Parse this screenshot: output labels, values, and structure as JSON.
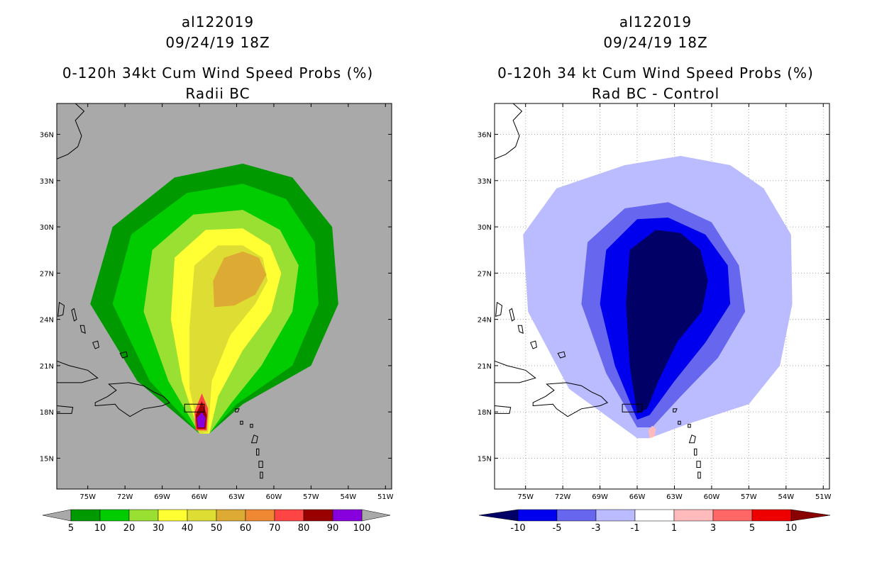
{
  "chart_data": [
    {
      "type": "heatmap",
      "storm_id": "al122019",
      "datetime": "09/24/19 18Z",
      "title": "0-120h 34kt Cum Wind Speed Probs (%)",
      "subtitle": "Radii BC",
      "x_ticks": [
        "75W",
        "72W",
        "69W",
        "66W",
        "63W",
        "60W",
        "57W",
        "54W",
        "51W"
      ],
      "y_ticks": [
        "15N",
        "18N",
        "21N",
        "24N",
        "27N",
        "30N",
        "33N",
        "36N"
      ],
      "xlim": [
        -77.5,
        -50.5
      ],
      "ylim": [
        13.0,
        38.0
      ],
      "grid": false,
      "background_color": "#a9a9a9",
      "colorbar": {
        "labels": [
          "5",
          "10",
          "20",
          "30",
          "40",
          "50",
          "60",
          "70",
          "80",
          "90",
          "100"
        ],
        "colors": [
          "#009900",
          "#00cc00",
          "#99e033",
          "#ffff33",
          "#dddd33",
          "#ddaa33",
          "#ee8833",
          "#ff4444",
          "#990000",
          "#8800dd"
        ],
        "under_color": "#a9a9a9",
        "over_color": "#a9a9a9"
      },
      "contours": [
        {
          "level": 5,
          "color": "#009900",
          "ring": [
            [
              -66.0,
              16.6
            ],
            [
              -71.0,
              20.0
            ],
            [
              -74.8,
              25.0
            ],
            [
              -73.0,
              30.0
            ],
            [
              -68.0,
              33.2
            ],
            [
              -62.5,
              34.1
            ],
            [
              -58.5,
              33.2
            ],
            [
              -55.3,
              30.0
            ],
            [
              -54.8,
              25.0
            ],
            [
              -57.0,
              21.0
            ],
            [
              -62.5,
              18.5
            ],
            [
              -65.2,
              16.6
            ]
          ]
        },
        {
          "level": 10,
          "color": "#00cc00",
          "ring": [
            [
              -66.0,
              16.6
            ],
            [
              -70.0,
              20.0
            ],
            [
              -73.0,
              25.0
            ],
            [
              -71.5,
              29.5
            ],
            [
              -67.0,
              32.2
            ],
            [
              -62.5,
              32.8
            ],
            [
              -59.0,
              31.8
            ],
            [
              -56.7,
              29.0
            ],
            [
              -56.4,
              25.0
            ],
            [
              -58.5,
              21.0
            ],
            [
              -63.0,
              18.5
            ],
            [
              -65.2,
              16.6
            ]
          ]
        },
        {
          "level": 20,
          "color": "#99e033",
          "ring": [
            [
              -66.0,
              16.6
            ],
            [
              -68.5,
              20.0
            ],
            [
              -70.5,
              24.5
            ],
            [
              -69.8,
              28.5
            ],
            [
              -66.5,
              30.8
            ],
            [
              -62.5,
              31.1
            ],
            [
              -59.5,
              29.8
            ],
            [
              -58.0,
              27.5
            ],
            [
              -58.5,
              24.5
            ],
            [
              -61.0,
              21.0
            ],
            [
              -63.5,
              18.5
            ],
            [
              -65.2,
              16.6
            ]
          ]
        },
        {
          "level": 30,
          "color": "#ffff33",
          "ring": [
            [
              -66.0,
              16.6
            ],
            [
              -67.4,
              20.0
            ],
            [
              -68.3,
              24.0
            ],
            [
              -68.0,
              28.0
            ],
            [
              -65.5,
              29.8
            ],
            [
              -62.5,
              29.9
            ],
            [
              -60.3,
              28.8
            ],
            [
              -59.4,
              27.0
            ],
            [
              -60.2,
              24.5
            ],
            [
              -62.5,
              22.0
            ],
            [
              -64.5,
              19.0
            ],
            [
              -65.2,
              16.6
            ]
          ]
        },
        {
          "level": 40,
          "color": "#dddd33",
          "ring": [
            [
              -66.0,
              16.6
            ],
            [
              -66.8,
              19.5
            ],
            [
              -66.8,
              23.5
            ],
            [
              -66.4,
              27.5
            ],
            [
              -64.5,
              28.8
            ],
            [
              -62.5,
              28.8
            ],
            [
              -60.9,
              28.0
            ],
            [
              -60.5,
              26.5
            ],
            [
              -61.5,
              25.0
            ],
            [
              -63.5,
              23.0
            ],
            [
              -65.0,
              20.0
            ],
            [
              -65.3,
              16.7
            ]
          ]
        },
        {
          "level": 50,
          "color": "#ddaa33",
          "ring": [
            [
              -64.8,
              24.8
            ],
            [
              -64.9,
              26.5
            ],
            [
              -64.0,
              28.0
            ],
            [
              -62.5,
              28.4
            ],
            [
              -61.2,
              28.0
            ],
            [
              -60.6,
              26.9
            ],
            [
              -61.5,
              25.6
            ],
            [
              -63.2,
              24.9
            ]
          ]
        },
        {
          "level": 70,
          "color": "#ff4444",
          "ring": [
            [
              -66.3,
              16.8
            ],
            [
              -66.4,
              18.0
            ],
            [
              -65.8,
              19.2
            ],
            [
              -65.3,
              18.2
            ],
            [
              -65.4,
              16.8
            ]
          ]
        },
        {
          "level": 80,
          "color": "#990000",
          "ring": [
            [
              -66.2,
              16.9
            ],
            [
              -66.3,
              17.8
            ],
            [
              -65.8,
              18.7
            ],
            [
              -65.4,
              17.8
            ],
            [
              -65.5,
              16.9
            ]
          ]
        },
        {
          "level": 90,
          "color": "#8800dd",
          "ring": [
            [
              -66.1,
              17.0
            ],
            [
              -66.2,
              17.6
            ],
            [
              -65.8,
              18.0
            ],
            [
              -65.5,
              17.6
            ],
            [
              -65.6,
              17.0
            ]
          ]
        }
      ]
    },
    {
      "type": "heatmap",
      "storm_id": "al122019",
      "datetime": "09/24/19 18Z",
      "title": "0-120h 34 kt Cum Wind Speed Probs (%)",
      "subtitle": "Rad BC - Control",
      "x_ticks": [
        "75W",
        "72W",
        "69W",
        "66W",
        "63W",
        "60W",
        "57W",
        "54W",
        "51W"
      ],
      "y_ticks": [
        "15N",
        "18N",
        "21N",
        "24N",
        "27N",
        "30N",
        "33N",
        "36N"
      ],
      "xlim": [
        -77.5,
        -50.5
      ],
      "ylim": [
        13.0,
        38.0
      ],
      "grid": true,
      "background_color": "#ffffff",
      "colorbar": {
        "labels": [
          "-10",
          "-5",
          "-3",
          "-1",
          "1",
          "3",
          "5",
          "10"
        ],
        "colors": [
          "#0000ee",
          "#6666ee",
          "#bbbbff",
          "#ffffff",
          "#ffbbbb",
          "#ff6666",
          "#ee0000"
        ],
        "under_color": "#000066",
        "over_color": "#880000"
      },
      "contours": [
        {
          "level": -1,
          "color": "#bbbbff",
          "ring": [
            [
              -66.0,
              16.3
            ],
            [
              -71.5,
              19.5
            ],
            [
              -74.8,
              24.5
            ],
            [
              -75.2,
              29.5
            ],
            [
              -72.5,
              32.5
            ],
            [
              -67.0,
              34.0
            ],
            [
              -62.5,
              34.6
            ],
            [
              -58.5,
              34.0
            ],
            [
              -55.8,
              32.5
            ],
            [
              -53.6,
              29.5
            ],
            [
              -53.5,
              25.0
            ],
            [
              -54.5,
              21.0
            ],
            [
              -57.0,
              18.5
            ],
            [
              -62.0,
              17.2
            ],
            [
              -65.0,
              16.3
            ]
          ]
        },
        {
          "level": -3,
          "color": "#6666ee",
          "ring": [
            [
              -66.0,
              17.0
            ],
            [
              -68.5,
              20.5
            ],
            [
              -70.5,
              25.0
            ],
            [
              -70.0,
              29.0
            ],
            [
              -67.0,
              31.2
            ],
            [
              -63.5,
              31.6
            ],
            [
              -60.0,
              30.3
            ],
            [
              -57.8,
              27.5
            ],
            [
              -57.3,
              24.5
            ],
            [
              -59.5,
              21.5
            ],
            [
              -62.5,
              19.0
            ],
            [
              -64.8,
              17.0
            ]
          ]
        },
        {
          "level": -5,
          "color": "#0000ee",
          "ring": [
            [
              -66.0,
              17.5
            ],
            [
              -67.8,
              21.0
            ],
            [
              -69.0,
              25.0
            ],
            [
              -68.5,
              28.5
            ],
            [
              -66.0,
              30.5
            ],
            [
              -63.5,
              30.6
            ],
            [
              -60.5,
              29.5
            ],
            [
              -58.7,
              27.5
            ],
            [
              -58.5,
              25.0
            ],
            [
              -60.5,
              22.5
            ],
            [
              -63.0,
              20.0
            ],
            [
              -65.0,
              17.8
            ]
          ]
        },
        {
          "level": -10,
          "color": "#000066",
          "ring": [
            [
              -66.0,
              17.9
            ],
            [
              -66.6,
              21.0
            ],
            [
              -66.9,
              25.0
            ],
            [
              -66.6,
              28.5
            ],
            [
              -64.5,
              29.8
            ],
            [
              -62.5,
              29.6
            ],
            [
              -60.9,
              28.5
            ],
            [
              -60.3,
              26.5
            ],
            [
              -60.8,
              24.5
            ],
            [
              -62.8,
              22.5
            ],
            [
              -64.3,
              20.0
            ],
            [
              -65.2,
              18.2
            ]
          ]
        },
        {
          "level": 1,
          "color": "#ffbbbb",
          "ring": [
            [
              -65.0,
              16.3
            ],
            [
              -64.6,
              16.4
            ],
            [
              -64.5,
              16.9
            ],
            [
              -64.8,
              17.1
            ],
            [
              -65.1,
              16.8
            ]
          ]
        }
      ]
    }
  ]
}
